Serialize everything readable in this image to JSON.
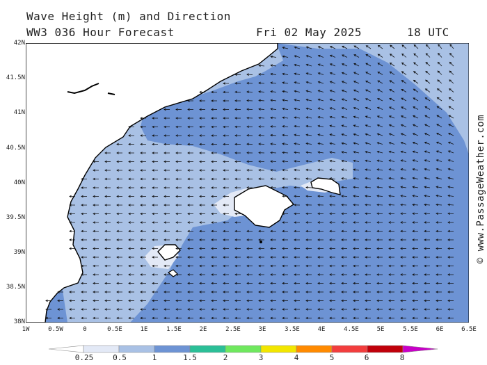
{
  "header": {
    "title": "Wave Height (m) and Direction",
    "model": "WW3 036 Hour Forecast",
    "date": "Fri 02 May 2025",
    "time": "18 UTC"
  },
  "axes": {
    "lat_ticks": [
      "42N",
      "41.5N",
      "41N",
      "40.5N",
      "40N",
      "39.5N",
      "39N",
      "38.5N",
      "38N"
    ],
    "lon_ticks": [
      "1W",
      "0.5W",
      "0",
      "0.5E",
      "1E",
      "1.5E",
      "2E",
      "2.5E",
      "3E",
      "3.5E",
      "4E",
      "4.5E",
      "5E",
      "5.5E",
      "6E",
      "6.5E"
    ]
  },
  "credit": "© www.PassageWeather.com",
  "legend": {
    "labels": [
      "0.25",
      "0.5",
      "1",
      "1.5",
      "2",
      "3",
      "4",
      "5",
      "6",
      "8"
    ],
    "colors": [
      "#e3e9f6",
      "#a9c1e5",
      "#6d93d4",
      "#2bbf97",
      "#6fe85e",
      "#f2e600",
      "#ff8a00",
      "#f23d3d",
      "#c0000a",
      "#c800c8"
    ]
  },
  "map_colors": {
    "land": "#ffffff",
    "sea_0_25": "#e3e9f6",
    "sea_0_5": "#a9c1e5",
    "sea_1": "#6d93d4",
    "arrow": "#111111"
  },
  "wind_direction": "waves propagating toward the west / north-west"
}
